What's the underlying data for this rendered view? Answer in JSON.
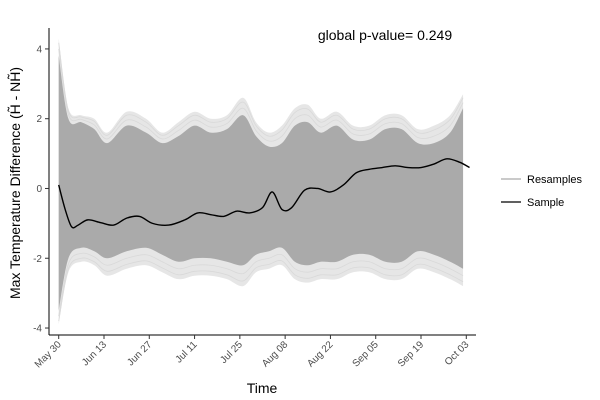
{
  "chart_data": {
    "type": "line",
    "title": "",
    "annotation": "global p-value= 0.249",
    "xlabel": "Time",
    "ylabel": "Max Temperature Difference (H̃ - NH̃)",
    "xlim": [
      "2019-05-27",
      "2019-10-06"
    ],
    "ylim": [
      -4.2,
      4.6
    ],
    "grid": false,
    "legend_position": "right",
    "x_ticks": [
      {
        "date": "2019-05-30",
        "label": "May 30"
      },
      {
        "date": "2019-06-13",
        "label": "Jun 13"
      },
      {
        "date": "2019-06-27",
        "label": "Jun 27"
      },
      {
        "date": "2019-07-11",
        "label": "Jul 11"
      },
      {
        "date": "2019-07-25",
        "label": "Jul 25"
      },
      {
        "date": "2019-08-08",
        "label": "Aug 08"
      },
      {
        "date": "2019-08-22",
        "label": "Aug 22"
      },
      {
        "date": "2019-09-05",
        "label": "Sep 05"
      },
      {
        "date": "2019-09-19",
        "label": "Sep 19"
      },
      {
        "date": "2019-10-03",
        "label": "Oct 03"
      }
    ],
    "y_ticks": [
      {
        "value": 4,
        "label": "4"
      },
      {
        "value": 2,
        "label": "2"
      },
      {
        "value": 0,
        "label": "0"
      },
      {
        "value": -2,
        "label": "-2"
      },
      {
        "value": -4,
        "label": "-4"
      }
    ],
    "series": [
      {
        "name": "Resamples",
        "color": "#aaaaaa",
        "band_upper": {
          "x": [
            "2019-05-30",
            "2019-06-02",
            "2019-06-06",
            "2019-06-10",
            "2019-06-14",
            "2019-06-20",
            "2019-06-26",
            "2019-07-01",
            "2019-07-06",
            "2019-07-11",
            "2019-07-16",
            "2019-07-21",
            "2019-07-26",
            "2019-07-30",
            "2019-08-03",
            "2019-08-07",
            "2019-08-11",
            "2019-08-15",
            "2019-08-19",
            "2019-08-24",
            "2019-08-29",
            "2019-09-03",
            "2019-09-08",
            "2019-09-13",
            "2019-09-18",
            "2019-09-23",
            "2019-09-28",
            "2019-10-02"
          ],
          "y": [
            3.8,
            2.0,
            1.9,
            1.7,
            1.3,
            1.8,
            1.6,
            1.3,
            1.5,
            1.8,
            1.6,
            1.7,
            2.1,
            1.5,
            1.2,
            1.3,
            1.8,
            1.9,
            1.6,
            1.8,
            1.4,
            1.4,
            1.7,
            1.7,
            1.3,
            1.3,
            1.6,
            2.3
          ]
        },
        "band_lower": {
          "x": [
            "2019-05-30",
            "2019-06-02",
            "2019-06-06",
            "2019-06-10",
            "2019-06-14",
            "2019-06-20",
            "2019-06-26",
            "2019-07-01",
            "2019-07-06",
            "2019-07-11",
            "2019-07-16",
            "2019-07-21",
            "2019-07-26",
            "2019-07-30",
            "2019-08-03",
            "2019-08-07",
            "2019-08-11",
            "2019-08-15",
            "2019-08-19",
            "2019-08-24",
            "2019-08-29",
            "2019-09-03",
            "2019-09-08",
            "2019-09-13",
            "2019-09-18",
            "2019-09-23",
            "2019-09-28",
            "2019-10-02"
          ],
          "y": [
            -3.5,
            -2.0,
            -1.7,
            -1.8,
            -2.0,
            -1.8,
            -1.7,
            -1.9,
            -2.1,
            -2.0,
            -2.0,
            -2.1,
            -2.2,
            -1.9,
            -1.8,
            -1.7,
            -2.1,
            -2.2,
            -2.1,
            -2.1,
            -1.9,
            -1.9,
            -2.1,
            -2.1,
            -1.8,
            -1.9,
            -2.1,
            -2.3
          ]
        },
        "envelope_upper": [
          4.3,
          2.3,
          2.1,
          2.0,
          1.6,
          2.2,
          2.0,
          1.6,
          1.9,
          2.2,
          2.0,
          2.1,
          2.6,
          1.9,
          1.6,
          1.8,
          2.3,
          2.4,
          2.0,
          2.2,
          1.8,
          1.8,
          2.1,
          2.1,
          1.7,
          1.8,
          2.1,
          2.7
        ],
        "envelope_lower": [
          -3.9,
          -2.4,
          -2.1,
          -2.2,
          -2.5,
          -2.3,
          -2.2,
          -2.4,
          -2.6,
          -2.5,
          -2.5,
          -2.6,
          -2.8,
          -2.4,
          -2.3,
          -2.2,
          -2.6,
          -2.7,
          -2.6,
          -2.6,
          -2.4,
          -2.4,
          -2.6,
          -2.6,
          -2.3,
          -2.4,
          -2.6,
          -2.8
        ]
      },
      {
        "name": "Sample",
        "color": "#000000",
        "x": [
          "2019-05-30",
          "2019-06-01",
          "2019-06-03",
          "2019-06-05",
          "2019-06-08",
          "2019-06-12",
          "2019-06-16",
          "2019-06-20",
          "2019-06-24",
          "2019-06-28",
          "2019-07-03",
          "2019-07-08",
          "2019-07-12",
          "2019-07-16",
          "2019-07-20",
          "2019-07-24",
          "2019-07-28",
          "2019-08-01",
          "2019-08-04",
          "2019-08-07",
          "2019-08-10",
          "2019-08-14",
          "2019-08-18",
          "2019-08-22",
          "2019-08-26",
          "2019-08-30",
          "2019-09-03",
          "2019-09-07",
          "2019-09-11",
          "2019-09-15",
          "2019-09-19",
          "2019-09-23",
          "2019-09-27",
          "2019-10-01",
          "2019-10-04"
        ],
        "y": [
          0.1,
          -0.6,
          -1.1,
          -1.05,
          -0.9,
          -0.98,
          -1.05,
          -0.85,
          -0.8,
          -1.0,
          -1.05,
          -0.9,
          -0.7,
          -0.75,
          -0.8,
          -0.65,
          -0.7,
          -0.55,
          -0.1,
          -0.6,
          -0.55,
          -0.05,
          0.0,
          -0.1,
          0.1,
          0.45,
          0.55,
          0.6,
          0.65,
          0.6,
          0.6,
          0.7,
          0.85,
          0.75,
          0.6
        ]
      }
    ]
  }
}
